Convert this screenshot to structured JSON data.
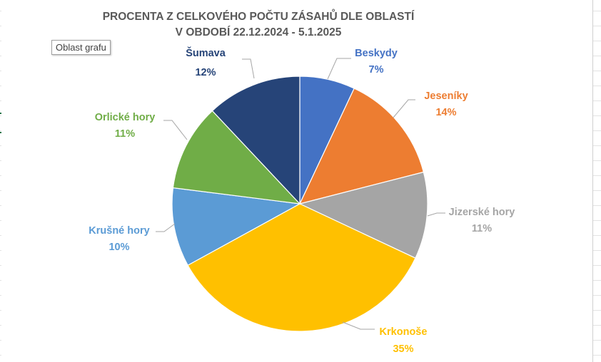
{
  "tooltip": "Oblast grafu",
  "chart_data": {
    "type": "pie",
    "title": "PROCENTA Z CELKOVÉHO POČTU ZÁSAHŮ DLE OBLASTÍ",
    "subtitle": "V OBDOBÍ 22.12.2024 - 5.1.2025",
    "legend": "none",
    "categories": [
      "Beskydy",
      "Jeseníky",
      "Jizerské hory",
      "Krkonoše",
      "Krušné hory",
      "Orlické hory",
      "Šumava"
    ],
    "values": [
      7,
      14,
      11,
      35,
      10,
      11,
      12
    ],
    "data_labels": [
      "7%",
      "14%",
      "11%",
      "35%",
      "10%",
      "11%",
      "12%"
    ],
    "colors": [
      "#4472C4",
      "#ED7D31",
      "#A5A5A5",
      "#FFC000",
      "#5B9BD5",
      "#70AD47",
      "#264478"
    ]
  }
}
